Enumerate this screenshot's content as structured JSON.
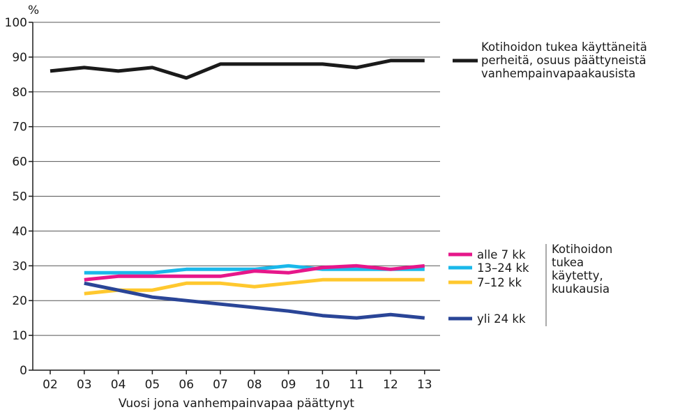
{
  "chart_data": {
    "type": "line",
    "ylabel": "%",
    "xlabel": "Vuosi jona vanhempainvapaa päättynyt",
    "ylim": [
      0,
      100
    ],
    "yticks": [
      0,
      10,
      20,
      30,
      40,
      50,
      60,
      70,
      80,
      90,
      100
    ],
    "categories": [
      "02",
      "03",
      "04",
      "05",
      "06",
      "07",
      "08",
      "09",
      "10",
      "11",
      "12",
      "13"
    ],
    "grid": true,
    "series": [
      {
        "name_lines": [
          "Kotihoidon tukea käyttäneitä",
          "perheitä, osuus päättyneistä",
          "vanhempainvapaakausista"
        ],
        "color": "#1a1a1a",
        "values": [
          86,
          87,
          86,
          87,
          84,
          88,
          88,
          88,
          88,
          87,
          89,
          89
        ]
      },
      {
        "name": "alle 7 kk",
        "color": "#e6178a",
        "values": [
          null,
          26,
          27,
          27,
          27,
          27,
          28.5,
          28,
          29.5,
          30,
          29,
          30
        ]
      },
      {
        "name": "13–24 kk",
        "color": "#1ab8ea",
        "values": [
          null,
          28,
          28,
          28,
          29,
          29,
          29,
          30,
          29,
          29,
          29,
          29
        ]
      },
      {
        "name": "7–12 kk",
        "color": "#ffc82e",
        "values": [
          null,
          22,
          23,
          23,
          25,
          25,
          24,
          25,
          26,
          26,
          26,
          26
        ]
      },
      {
        "name": "yli 24 kk",
        "color": "#2a4597",
        "values": [
          null,
          25,
          23,
          21,
          20,
          19,
          18,
          17,
          15.7,
          15,
          16,
          15
        ]
      }
    ],
    "group_label_lines": [
      "Kotihoidon",
      "tukea",
      "käytetty,",
      "kuukausia"
    ]
  }
}
